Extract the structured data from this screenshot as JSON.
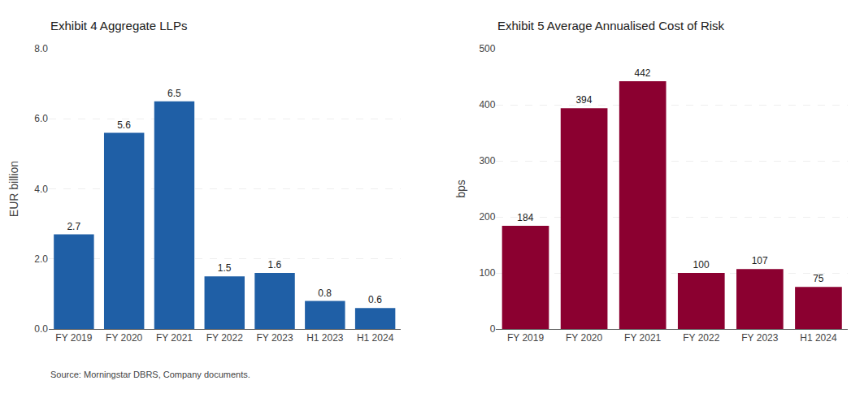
{
  "chart_data": [
    {
      "type": "bar",
      "title": "Exhibit 4 Aggregate LLPs",
      "ylabel": "EUR billion",
      "categories": [
        "FY 2019",
        "FY 2020",
        "FY 2021",
        "FY 2022",
        "FY 2023",
        "H1 2023",
        "H1 2024"
      ],
      "values": [
        2.7,
        5.6,
        6.5,
        1.5,
        1.6,
        0.8,
        0.6
      ],
      "color": "#1F5FA6",
      "ylim": [
        0,
        8.0
      ],
      "yticks": [
        {
          "value": 0.0,
          "label": "0.0"
        },
        {
          "value": 2.0,
          "label": "2.0"
        },
        {
          "value": 4.0,
          "label": "4.0"
        },
        {
          "value": 6.0,
          "label": "6.0"
        },
        {
          "value": 8.0,
          "label": "8.0"
        }
      ],
      "grid": true,
      "data_labels": true,
      "annotations": [
        "Source: Morningstar DBRS, Company documents."
      ]
    },
    {
      "type": "bar",
      "title": "Exhibit 5 Average Annualised Cost of Risk",
      "ylabel": "bps",
      "categories": [
        "FY 2019",
        "FY 2020",
        "FY 2021",
        "FY 2022",
        "FY 2023",
        "H1 2024"
      ],
      "values": [
        184,
        394,
        442,
        100,
        107,
        75
      ],
      "color": "#8B0030",
      "ylim": [
        0,
        500
      ],
      "yticks": [
        0,
        100,
        200,
        300,
        400,
        500
      ],
      "grid": true,
      "data_labels": true
    }
  ]
}
